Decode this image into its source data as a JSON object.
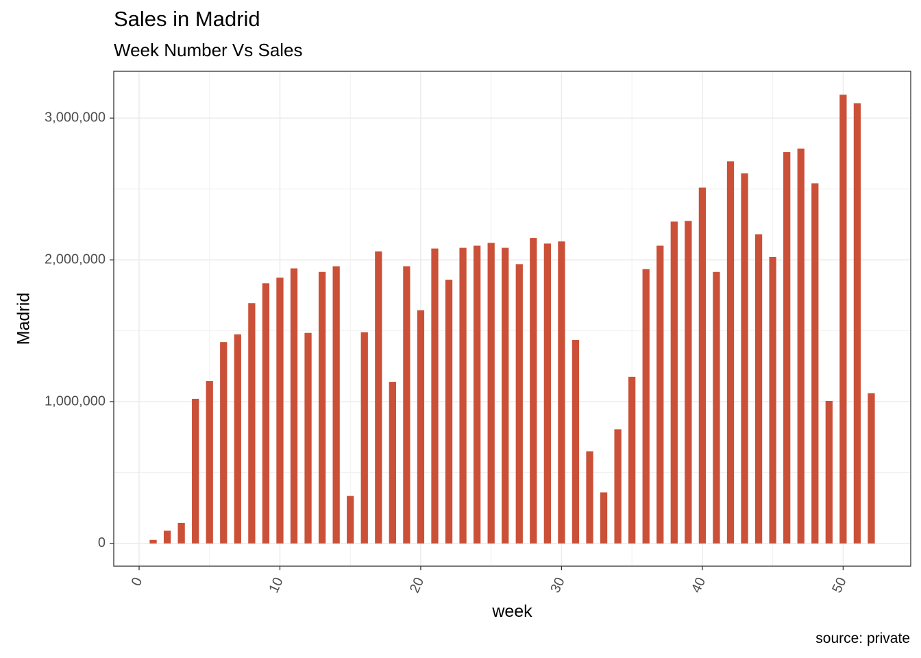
{
  "chart_data": {
    "type": "bar",
    "title": "Sales in Madrid",
    "subtitle": "Week Number Vs Sales",
    "xlabel": "week",
    "ylabel": "Madrid",
    "caption": "source: private",
    "x_ticks": [
      "0",
      "10",
      "20",
      "30",
      "40",
      "50"
    ],
    "y_ticks": [
      "0",
      "1,000,000",
      "2,000,000",
      "3,000,000"
    ],
    "xlim": [
      -1.8,
      54.8
    ],
    "ylim": [
      -160000,
      3330000
    ],
    "grid": true,
    "bar_color": "#CB5038",
    "x": [
      1,
      2,
      3,
      4,
      5,
      6,
      7,
      8,
      9,
      10,
      11,
      12,
      13,
      14,
      15,
      16,
      17,
      18,
      19,
      20,
      21,
      22,
      23,
      24,
      25,
      26,
      27,
      28,
      29,
      30,
      31,
      32,
      33,
      34,
      35,
      36,
      37,
      38,
      39,
      40,
      41,
      42,
      43,
      44,
      45,
      46,
      47,
      48,
      49,
      50,
      51,
      52
    ],
    "values": [
      25000,
      90000,
      145000,
      1020000,
      1145000,
      1420000,
      1475000,
      1695000,
      1835000,
      1875000,
      1940000,
      1485000,
      1915000,
      1955000,
      335000,
      1490000,
      2060000,
      1140000,
      1955000,
      1645000,
      2080000,
      1860000,
      2085000,
      2100000,
      2120000,
      2085000,
      1970000,
      2155000,
      2115000,
      2130000,
      1435000,
      650000,
      360000,
      805000,
      1175000,
      1935000,
      2100000,
      2270000,
      2275000,
      2510000,
      1915000,
      2695000,
      2610000,
      2180000,
      2020000,
      2760000,
      2785000,
      2540000,
      1005000,
      3165000,
      3105000,
      1060000
    ]
  }
}
